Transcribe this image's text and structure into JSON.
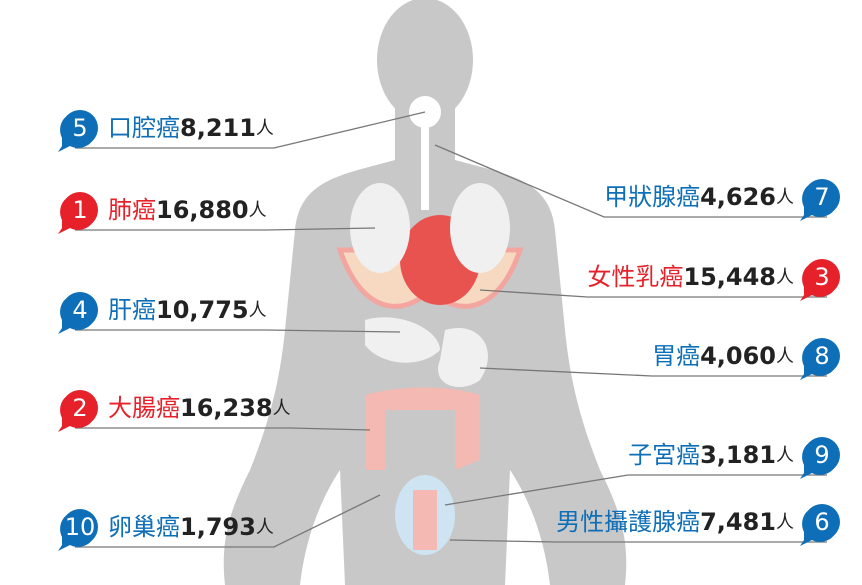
{
  "items": [
    {
      "side": "left",
      "rank": "5",
      "name": "口腔癌",
      "count": "8,211",
      "unit": "人",
      "color": "#0e6eb8"
    },
    {
      "side": "left",
      "rank": "1",
      "name": "肺癌",
      "count": "16,880",
      "unit": "人",
      "color": "#e6212a"
    },
    {
      "side": "left",
      "rank": "4",
      "name": "肝癌",
      "count": "10,775",
      "unit": "人",
      "color": "#0e6eb8"
    },
    {
      "side": "left",
      "rank": "2",
      "name": "大腸癌",
      "count": "16,238",
      "unit": "人",
      "color": "#e6212a"
    },
    {
      "side": "left",
      "rank": "10",
      "name": "卵巢癌",
      "count": "1,793",
      "unit": "人",
      "color": "#0e6eb8"
    },
    {
      "side": "right",
      "rank": "7",
      "name": "甲狀腺癌",
      "count": "4,626",
      "unit": "人",
      "color": "#0e6eb8"
    },
    {
      "side": "right",
      "rank": "3",
      "name": "女性乳癌",
      "count": "15,448",
      "unit": "人",
      "color": "#e6212a"
    },
    {
      "side": "right",
      "rank": "8",
      "name": "胃癌",
      "count": "4,060",
      "unit": "人",
      "color": "#0e6eb8"
    },
    {
      "side": "right",
      "rank": "9",
      "name": "子宮癌",
      "count": "3,181",
      "unit": "人",
      "color": "#0e6eb8"
    },
    {
      "side": "right",
      "rank": "6",
      "name": "男性攝護腺癌",
      "count": "7,481",
      "unit": "人",
      "color": "#0e6eb8"
    }
  ]
}
